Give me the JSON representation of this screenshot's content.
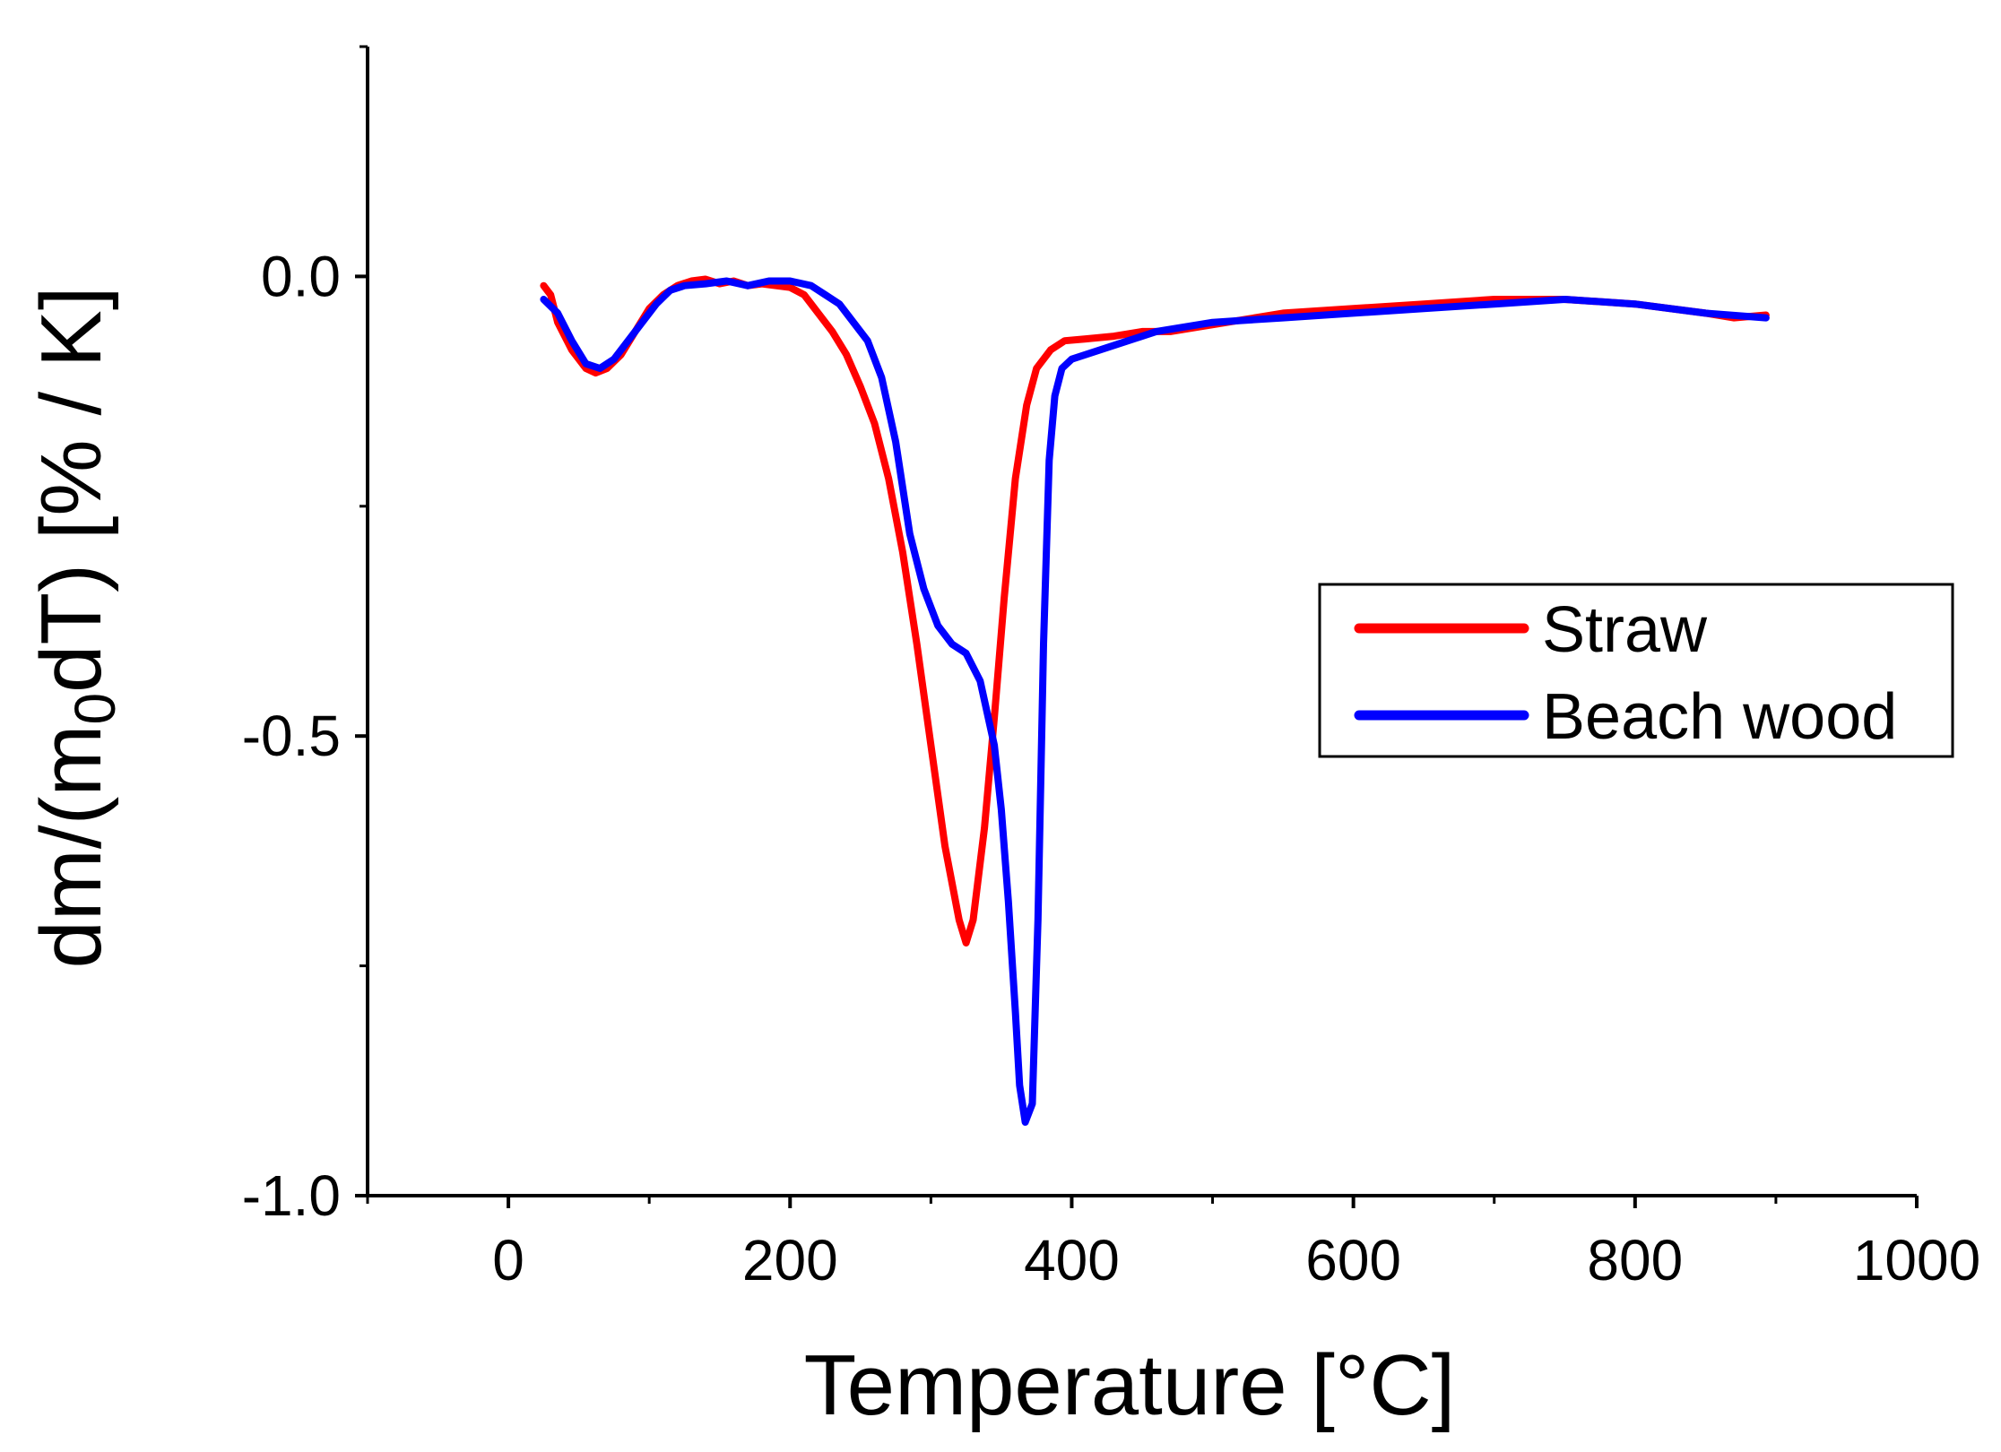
{
  "chart_data": {
    "type": "line",
    "xlabel": "Temperature [°C]",
    "ylabel_parts": {
      "prefix": "dm/(m",
      "subscript": "0",
      "suffix": "dT) [% / K]"
    },
    "xlim": [
      -100,
      1000
    ],
    "ylim": [
      -1.0,
      0.25
    ],
    "xticks": [
      0,
      200,
      400,
      600,
      800,
      1000
    ],
    "xtick_labels": [
      "0",
      "200",
      "400",
      "600",
      "800",
      "1000"
    ],
    "xminor": [
      -100,
      100,
      300,
      500,
      700,
      900
    ],
    "yticks": [
      0.0,
      -0.5,
      -1.0
    ],
    "ytick_labels": [
      "0.0",
      "-0.5",
      "-1.0"
    ],
    "yminor": [
      0.25,
      -0.25,
      -0.75
    ],
    "grid": false,
    "legend_position": "center-right",
    "series": [
      {
        "name": "Straw",
        "color": "#ff0000",
        "points": [
          [
            25,
            -0.01
          ],
          [
            30,
            -0.02
          ],
          [
            35,
            -0.05
          ],
          [
            45,
            -0.08
          ],
          [
            55,
            -0.1
          ],
          [
            62,
            -0.105
          ],
          [
            70,
            -0.1
          ],
          [
            80,
            -0.085
          ],
          [
            90,
            -0.06
          ],
          [
            100,
            -0.035
          ],
          [
            110,
            -0.02
          ],
          [
            120,
            -0.01
          ],
          [
            130,
            -0.005
          ],
          [
            140,
            -0.003
          ],
          [
            150,
            -0.008
          ],
          [
            160,
            -0.005
          ],
          [
            170,
            -0.01
          ],
          [
            180,
            -0.008
          ],
          [
            190,
            -0.01
          ],
          [
            200,
            -0.012
          ],
          [
            210,
            -0.02
          ],
          [
            220,
            -0.04
          ],
          [
            230,
            -0.06
          ],
          [
            240,
            -0.085
          ],
          [
            250,
            -0.12
          ],
          [
            260,
            -0.16
          ],
          [
            270,
            -0.22
          ],
          [
            280,
            -0.3
          ],
          [
            290,
            -0.4
          ],
          [
            300,
            -0.51
          ],
          [
            310,
            -0.62
          ],
          [
            320,
            -0.7
          ],
          [
            325,
            -0.725
          ],
          [
            330,
            -0.7
          ],
          [
            338,
            -0.6
          ],
          [
            345,
            -0.48
          ],
          [
            352,
            -0.35
          ],
          [
            360,
            -0.22
          ],
          [
            368,
            -0.14
          ],
          [
            375,
            -0.1
          ],
          [
            385,
            -0.08
          ],
          [
            395,
            -0.07
          ],
          [
            410,
            -0.068
          ],
          [
            430,
            -0.065
          ],
          [
            450,
            -0.06
          ],
          [
            470,
            -0.06
          ],
          [
            490,
            -0.055
          ],
          [
            510,
            -0.05
          ],
          [
            530,
            -0.045
          ],
          [
            550,
            -0.04
          ],
          [
            600,
            -0.035
          ],
          [
            650,
            -0.03
          ],
          [
            700,
            -0.025
          ],
          [
            750,
            -0.025
          ],
          [
            800,
            -0.03
          ],
          [
            850,
            -0.04
          ],
          [
            870,
            -0.045
          ],
          [
            893,
            -0.042
          ]
        ]
      },
      {
        "name": "Beach wood",
        "color": "#0000ff",
        "points": [
          [
            25,
            -0.025
          ],
          [
            35,
            -0.04
          ],
          [
            45,
            -0.07
          ],
          [
            55,
            -0.095
          ],
          [
            65,
            -0.1
          ],
          [
            75,
            -0.09
          ],
          [
            85,
            -0.07
          ],
          [
            95,
            -0.05
          ],
          [
            105,
            -0.03
          ],
          [
            115,
            -0.015
          ],
          [
            125,
            -0.01
          ],
          [
            140,
            -0.008
          ],
          [
            155,
            -0.005
          ],
          [
            170,
            -0.01
          ],
          [
            185,
            -0.005
          ],
          [
            200,
            -0.005
          ],
          [
            215,
            -0.01
          ],
          [
            225,
            -0.02
          ],
          [
            235,
            -0.03
          ],
          [
            245,
            -0.05
          ],
          [
            255,
            -0.07
          ],
          [
            265,
            -0.11
          ],
          [
            275,
            -0.18
          ],
          [
            285,
            -0.28
          ],
          [
            295,
            -0.34
          ],
          [
            305,
            -0.38
          ],
          [
            315,
            -0.4
          ],
          [
            325,
            -0.41
          ],
          [
            335,
            -0.44
          ],
          [
            345,
            -0.51
          ],
          [
            350,
            -0.58
          ],
          [
            355,
            -0.68
          ],
          [
            360,
            -0.8
          ],
          [
            363,
            -0.88
          ],
          [
            367,
            -0.92
          ],
          [
            372,
            -0.9
          ],
          [
            376,
            -0.7
          ],
          [
            380,
            -0.4
          ],
          [
            384,
            -0.2
          ],
          [
            388,
            -0.13
          ],
          [
            393,
            -0.1
          ],
          [
            400,
            -0.09
          ],
          [
            420,
            -0.08
          ],
          [
            440,
            -0.07
          ],
          [
            460,
            -0.06
          ],
          [
            480,
            -0.055
          ],
          [
            500,
            -0.05
          ],
          [
            520,
            -0.048
          ],
          [
            550,
            -0.045
          ],
          [
            600,
            -0.04
          ],
          [
            650,
            -0.035
          ],
          [
            700,
            -0.03
          ],
          [
            750,
            -0.025
          ],
          [
            800,
            -0.03
          ],
          [
            850,
            -0.04
          ],
          [
            893,
            -0.045
          ]
        ]
      }
    ]
  }
}
